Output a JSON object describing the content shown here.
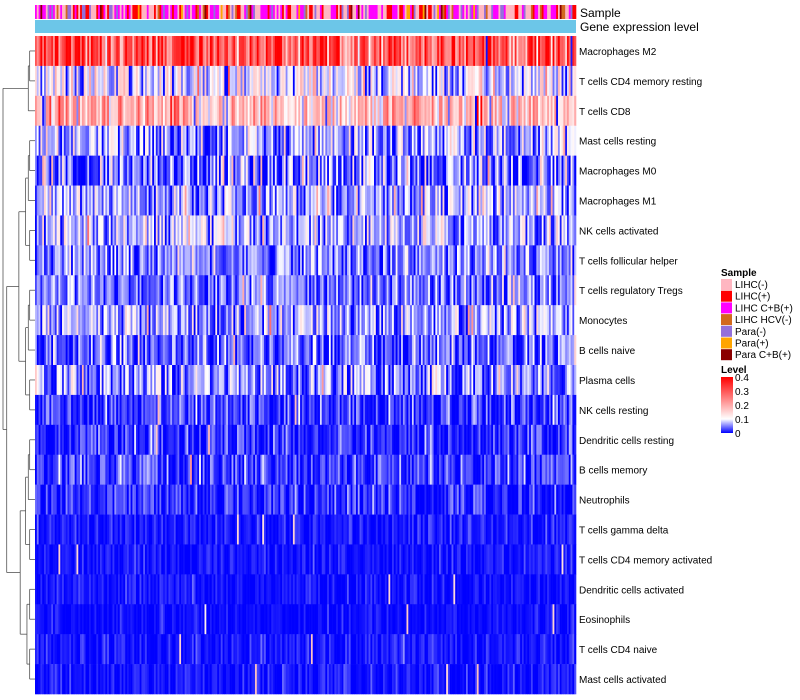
{
  "chart_data": {
    "type": "heatmap",
    "title": "",
    "annotation_rows": [
      "Sample",
      "Gene expression level"
    ],
    "rows": [
      {
        "label": "Macrophages M2",
        "mean": 0.31,
        "spread": 0.09
      },
      {
        "label": "T cells CD4 memory resting",
        "mean": 0.09,
        "spread": 0.06
      },
      {
        "label": "T cells CD8",
        "mean": 0.17,
        "spread": 0.07
      },
      {
        "label": "Mast cells resting",
        "mean": 0.06,
        "spread": 0.05
      },
      {
        "label": "Macrophages M0",
        "mean": 0.04,
        "spread": 0.06
      },
      {
        "label": "Macrophages M1",
        "mean": 0.07,
        "spread": 0.04
      },
      {
        "label": "NK cells activated",
        "mean": 0.07,
        "spread": 0.045
      },
      {
        "label": "T cells follicular helper",
        "mean": 0.05,
        "spread": 0.035
      },
      {
        "label": "T cells regulatory  Tregs",
        "mean": 0.045,
        "spread": 0.035
      },
      {
        "label": "Monocytes",
        "mean": 0.065,
        "spread": 0.045
      },
      {
        "label": "B cells naive",
        "mean": 0.04,
        "spread": 0.035
      },
      {
        "label": "Plasma cells",
        "mean": 0.055,
        "spread": 0.045
      },
      {
        "label": "NK cells resting",
        "mean": 0.025,
        "spread": 0.03
      },
      {
        "label": "Dendritic cells resting",
        "mean": 0.015,
        "spread": 0.025
      },
      {
        "label": "B cells memory",
        "mean": 0.02,
        "spread": 0.03
      },
      {
        "label": "Neutrophils",
        "mean": 0.015,
        "spread": 0.025
      },
      {
        "label": "T cells gamma delta",
        "mean": 0.008,
        "spread": 0.015
      },
      {
        "label": "T cells CD4 memory activated",
        "mean": 0.006,
        "spread": 0.012
      },
      {
        "label": "Dendritic cells activated",
        "mean": 0.005,
        "spread": 0.012
      },
      {
        "label": "Eosinophils",
        "mean": 0.004,
        "spread": 0.01
      },
      {
        "label": "T cells CD4 naive",
        "mean": 0.007,
        "spread": 0.014
      },
      {
        "label": "Mast cells activated",
        "mean": 0.006,
        "spread": 0.014
      }
    ],
    "sample_legend": {
      "title": "Sample",
      "entries": [
        {
          "label": "LIHC(-)",
          "color": "#FFB6C1"
        },
        {
          "label": "LIHC(+)",
          "color": "#FF0000"
        },
        {
          "label": "LIHC C+B(+)",
          "color": "#FF00FF"
        },
        {
          "label": "LIHC HCV(-)",
          "color": "#D2691E"
        },
        {
          "label": "Para(-)",
          "color": "#9370DB"
        },
        {
          "label": "Para(+)",
          "color": "#FFA500"
        },
        {
          "label": "Para C+B(+)",
          "color": "#8B0000"
        }
      ]
    },
    "level_legend": {
      "title": "Level",
      "ticks": [
        "0.4",
        "0.3",
        "0.2",
        "0.1",
        "0"
      ],
      "tick_values": [
        0.4,
        0.3,
        0.2,
        0.1,
        0
      ],
      "range": [
        0,
        0.4
      ],
      "colors": [
        "#0000FF",
        "#FFFFFF",
        "#FF0000"
      ]
    },
    "gene_expression_color": "#6CC6E8",
    "n_columns": 300
  }
}
